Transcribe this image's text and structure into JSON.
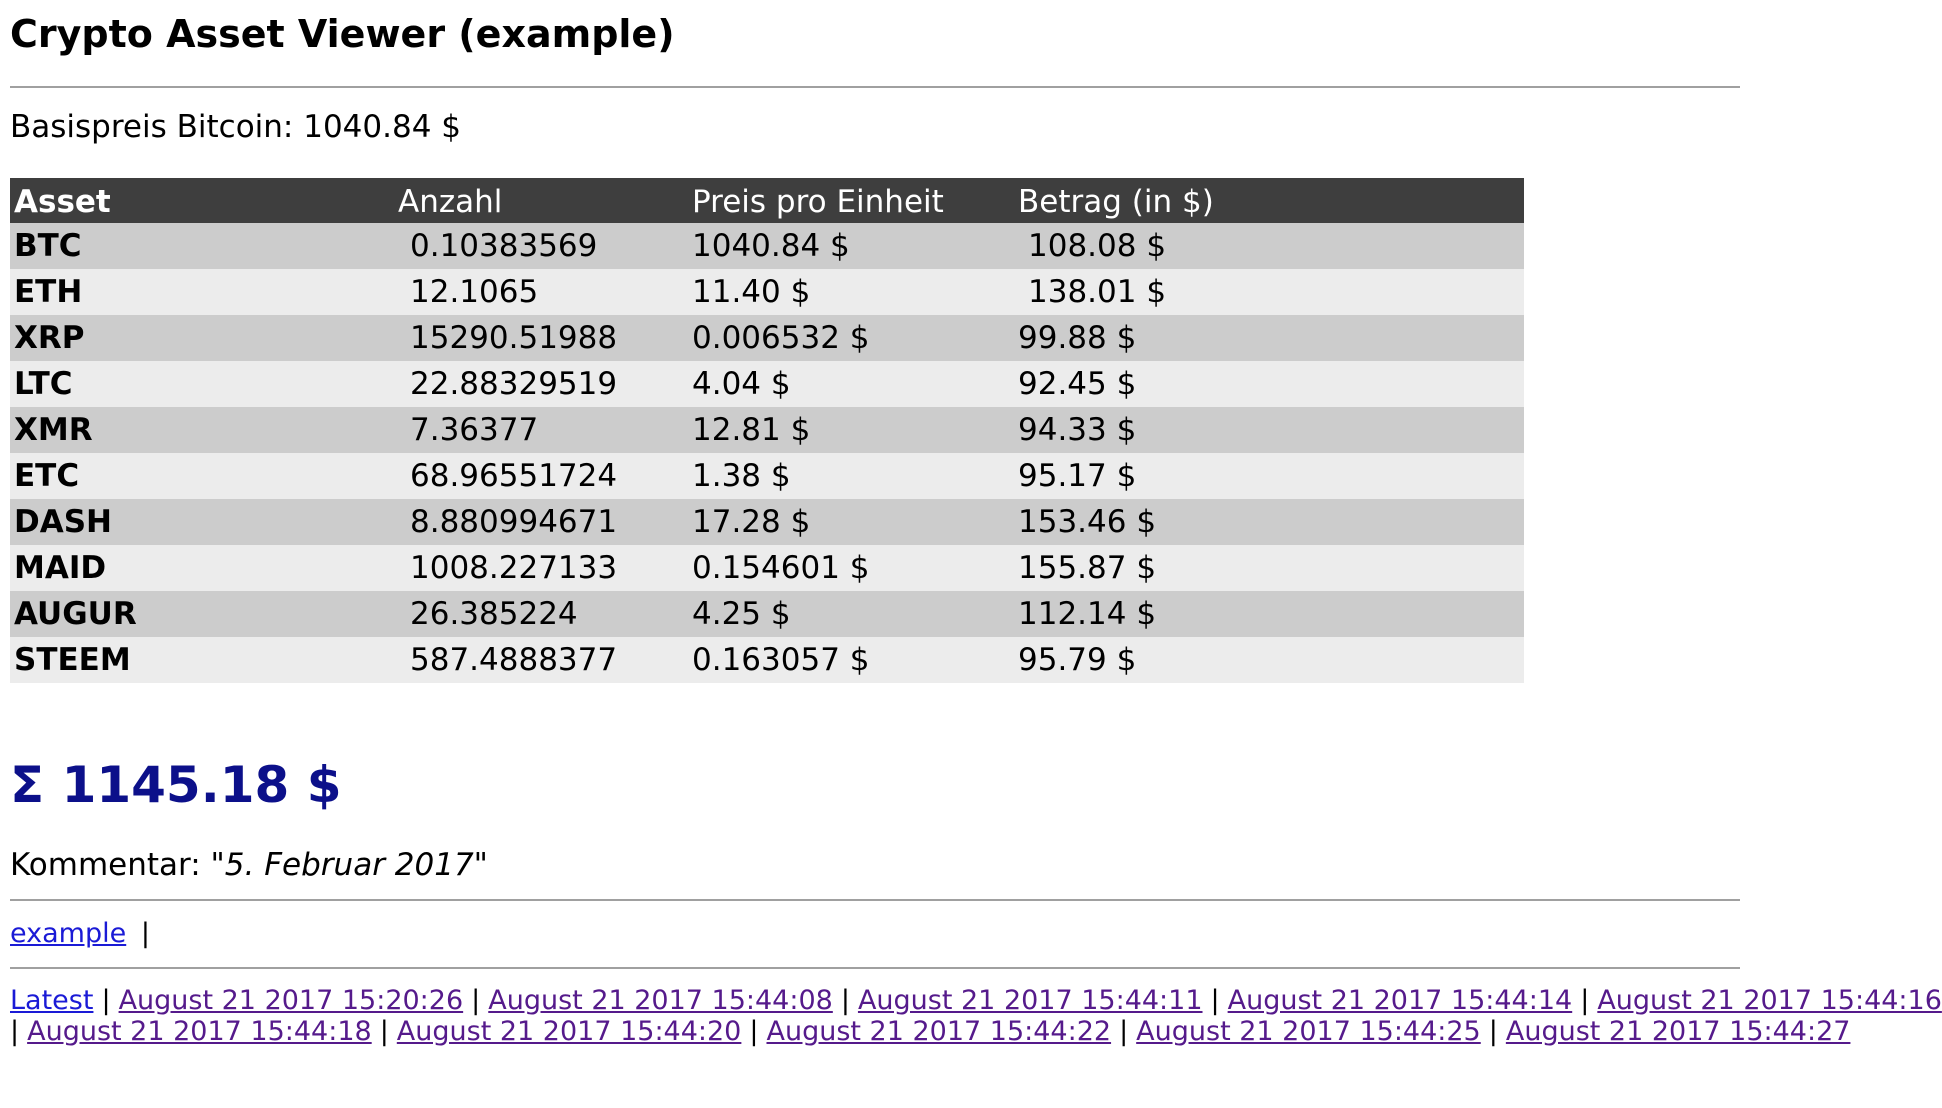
{
  "title": "Crypto Asset Viewer (example)",
  "basis": {
    "label": "Basispreis Bitcoin:",
    "value": "1040.84 $"
  },
  "table": {
    "headers": [
      "Asset",
      "Anzahl",
      "Preis pro Einheit",
      "Betrag (in $)"
    ],
    "rows": [
      {
        "asset": "BTC",
        "amount": "0.10383569",
        "price": "1040.84 $",
        "value": "108.08 $"
      },
      {
        "asset": "ETH",
        "amount": "12.1065",
        "price": "11.40 $",
        "value": "138.01 $"
      },
      {
        "asset": "XRP",
        "amount": "15290.51988",
        "price": "0.006532 $",
        "value": "99.88 $"
      },
      {
        "asset": "LTC",
        "amount": "22.88329519",
        "price": "4.04 $",
        "value": "92.45 $"
      },
      {
        "asset": "XMR",
        "amount": "7.36377",
        "price": "12.81 $",
        "value": "94.33 $"
      },
      {
        "asset": "ETC",
        "amount": "68.96551724",
        "price": "1.38 $",
        "value": "95.17 $"
      },
      {
        "asset": "DASH",
        "amount": "8.880994671",
        "price": "17.28 $",
        "value": "153.46 $"
      },
      {
        "asset": "MAID",
        "amount": "1008.227133",
        "price": "0.154601 $",
        "value": "155.87 $"
      },
      {
        "asset": "AUGUR",
        "amount": "26.385224",
        "price": "4.25 $",
        "value": "112.14 $"
      },
      {
        "asset": "STEEM",
        "amount": "587.4888377",
        "price": "0.163057 $",
        "value": "95.79 $"
      }
    ]
  },
  "total": "Σ 1145.18 $",
  "comment": {
    "label": "Kommentar:",
    "text": "\"5. Februar 2017\""
  },
  "user_link": "example",
  "user_sep": "|",
  "history": {
    "latest": "Latest",
    "line1": [
      "August 21 2017 15:20:26",
      "August 21 2017 15:44:08",
      "August 21 2017 15:44:11",
      "August 21 2017 15:44:14",
      "August 21 2017 15:44:16"
    ],
    "line2": [
      "August 21 2017 15:44:18",
      "August 21 2017 15:44:20",
      "August 21 2017 15:44:22",
      "August 21 2017 15:44:25",
      "August 21 2017 15:44:27"
    ]
  }
}
